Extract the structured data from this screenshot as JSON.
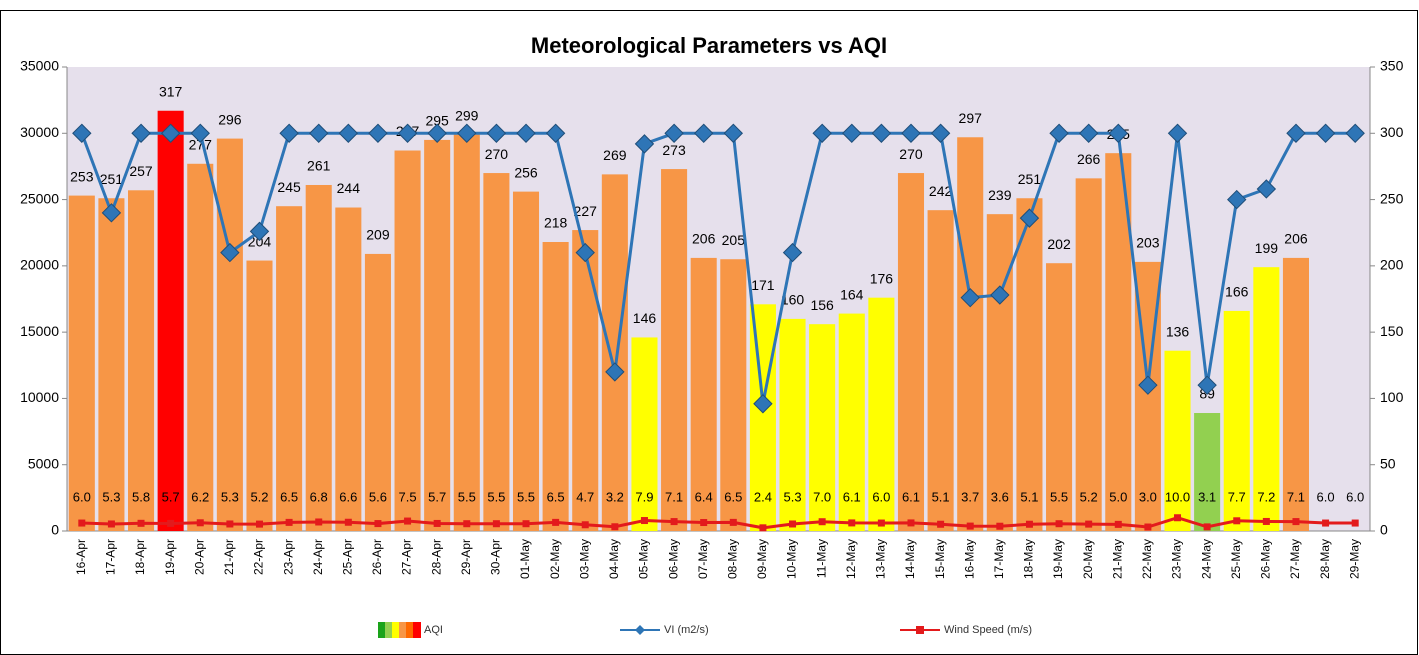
{
  "chart_data": {
    "type": "bar-line",
    "title": "Meteorological Parameters vs AQI",
    "categories": [
      "16-Apr",
      "17-Apr",
      "18-Apr",
      "19-Apr",
      "20-Apr",
      "21-Apr",
      "22-Apr",
      "23-Apr",
      "24-Apr",
      "25-Apr",
      "26-Apr",
      "27-Apr",
      "28-Apr",
      "29-Apr",
      "30-Apr",
      "01-May",
      "02-May",
      "03-May",
      "04-May",
      "05-May",
      "06-May",
      "07-May",
      "08-May",
      "09-May",
      "10-May",
      "11-May",
      "12-May",
      "13-May",
      "14-May",
      "15-May",
      "16-May",
      "17-May",
      "18-May",
      "19-May",
      "20-May",
      "21-May",
      "22-May",
      "23-May",
      "24-May",
      "25-May",
      "26-May",
      "27-May",
      "28-May",
      "29-May"
    ],
    "ylim": [
      0,
      35000
    ],
    "yticks": [
      0,
      5000,
      10000,
      15000,
      20000,
      25000,
      30000,
      35000
    ],
    "y2lim": [
      0,
      350
    ],
    "y2ticks": [
      0,
      50,
      100,
      150,
      200,
      250,
      300,
      350
    ],
    "series": [
      {
        "name": "AQI",
        "kind": "bar",
        "axis": "y2",
        "colors": [
          "#f79646",
          "#f79646",
          "#f79646",
          "#ff0000",
          "#f79646",
          "#f79646",
          "#f79646",
          "#f79646",
          "#f79646",
          "#f79646",
          "#f79646",
          "#f79646",
          "#f79646",
          "#f79646",
          "#f79646",
          "#f79646",
          "#f79646",
          "#f79646",
          "#f79646",
          "#ffff00",
          "#f79646",
          "#f79646",
          "#f79646",
          "#ffff00",
          "#ffff00",
          "#ffff00",
          "#ffff00",
          "#ffff00",
          "#f79646",
          "#f79646",
          "#f79646",
          "#f79646",
          "#f79646",
          "#f79646",
          "#f79646",
          "#f79646",
          "#f79646",
          "#ffff00",
          "#92d050",
          "#ffff00",
          "#ffff00",
          "#f79646",
          null,
          null
        ],
        "values": [
          253,
          251,
          257,
          317,
          277,
          296,
          204,
          245,
          261,
          244,
          209,
          287,
          295,
          299,
          270,
          256,
          218,
          227,
          269,
          146,
          273,
          206,
          205,
          171,
          160,
          156,
          164,
          176,
          270,
          242,
          297,
          239,
          251,
          202,
          266,
          285,
          203,
          136,
          89,
          166,
          199,
          206,
          null,
          null
        ]
      },
      {
        "name": "VI (m2/s)",
        "kind": "line",
        "marker": "diamond",
        "color": "#2e75b6",
        "axis": "y",
        "values": [
          30000,
          24000,
          30000,
          30000,
          30000,
          21000,
          22600,
          30000,
          30000,
          30000,
          30000,
          30000,
          30000,
          30000,
          30000,
          30000,
          30000,
          21000,
          12000,
          29200,
          30000,
          30000,
          30000,
          9600,
          21000,
          30000,
          30000,
          30000,
          30000,
          30000,
          17600,
          17800,
          23600,
          30000,
          30000,
          30000,
          11000,
          30000,
          11000,
          25000,
          25800,
          30000,
          30000,
          30000
        ]
      },
      {
        "name": "Wind Speed (m/s)",
        "kind": "line",
        "marker": "square",
        "color": "#e31a1c",
        "axis": "y2",
        "values": [
          6.0,
          5.3,
          5.8,
          5.7,
          6.2,
          5.3,
          5.2,
          6.5,
          6.8,
          6.6,
          5.6,
          7.5,
          5.7,
          5.5,
          5.5,
          5.5,
          6.5,
          4.7,
          3.2,
          7.9,
          7.1,
          6.4,
          6.5,
          2.4,
          5.3,
          7.0,
          6.1,
          6.0,
          6.1,
          5.1,
          3.7,
          3.6,
          5.1,
          5.5,
          5.2,
          5.0,
          3.0,
          10.0,
          3.1,
          7.7,
          7.2,
          7.1,
          6.0,
          6.0
        ],
        "value_labels": [
          "6.0",
          "5.3",
          "5.8",
          "5.7",
          "6.2",
          "5.3",
          "5.2",
          "6.5",
          "6.8",
          "6.6",
          "5.6",
          "7.5",
          "5.7",
          "5.5",
          "5.5",
          "5.5",
          "6.5",
          "4.7",
          "3.2",
          "7.9",
          "7.1",
          "6.4",
          "6.5",
          "2.4",
          "5.3",
          "7.0",
          "6.1",
          "6.0",
          "6.1",
          "5.1",
          "3.7",
          "3.6",
          "5.1",
          "5.5",
          "5.2",
          "5.0",
          "3.0",
          "10.0",
          "3.1",
          "7.7",
          "7.2",
          "7.1",
          "6.0",
          "6.0"
        ]
      }
    ]
  }
}
